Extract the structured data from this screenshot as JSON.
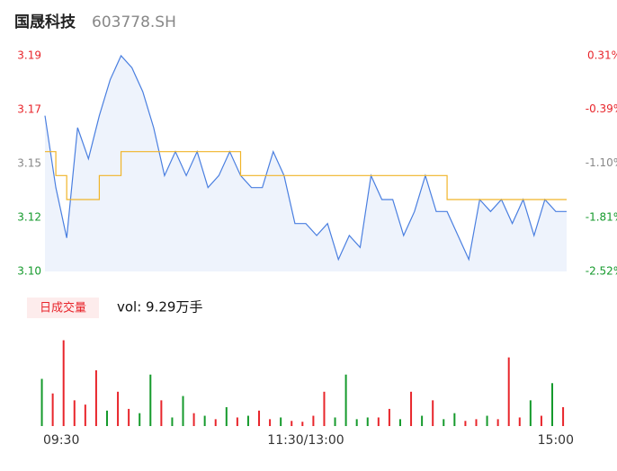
{
  "chart_data": [
    {
      "type": "line",
      "title": "国晟科技",
      "subtitle": "603778.SH",
      "xlim": [
        0,
        240
      ],
      "xticks": [
        {
          "value": 0,
          "label": "09:30"
        },
        {
          "value": 120,
          "label": "11:30/13:00"
        },
        {
          "value": 240,
          "label": "15:00"
        }
      ],
      "ylim": [
        3.1,
        3.19
      ],
      "yticks": [
        {
          "value": 3.19,
          "label": "3.19"
        },
        {
          "value": 3.1675,
          "label": "3.17"
        },
        {
          "value": 3.145,
          "label": "3.15"
        },
        {
          "value": 3.1225,
          "label": "3.12"
        },
        {
          "value": 3.1,
          "label": "3.10"
        }
      ],
      "ytick_colors": [
        "#e8252b",
        "#e8252b",
        "#888888",
        "#159a2c",
        "#159a2c"
      ],
      "y2lim": [
        -2.52,
        0.31
      ],
      "y2ticks": [
        {
          "value": 0.31,
          "label": "0.31%"
        },
        {
          "value": -0.39,
          "label": "-0.39%"
        },
        {
          "value": -1.1,
          "label": "-1.10%"
        },
        {
          "value": -1.81,
          "label": "-1.81%"
        },
        {
          "value": -2.52,
          "label": "-2.52%"
        }
      ],
      "x": [
        0,
        5,
        10,
        15,
        20,
        25,
        30,
        35,
        40,
        45,
        50,
        55,
        60,
        65,
        70,
        75,
        80,
        85,
        90,
        95,
        100,
        105,
        110,
        115,
        120,
        125,
        130,
        135,
        140,
        145,
        150,
        155,
        160,
        165,
        170,
        175,
        180,
        185,
        190,
        195,
        200,
        205,
        210,
        215,
        220,
        225,
        230,
        235,
        240
      ],
      "series": [
        {
          "color": "#4a7fe0",
          "area": "#eef3fc",
          "values": [
            3.165,
            3.135,
            3.114,
            3.16,
            3.147,
            3.165,
            3.18,
            3.19,
            3.185,
            3.175,
            3.16,
            3.14,
            3.15,
            3.14,
            3.15,
            3.135,
            3.14,
            3.15,
            3.14,
            3.135,
            3.135,
            3.15,
            3.14,
            3.12,
            3.12,
            3.115,
            3.12,
            3.105,
            3.115,
            3.11,
            3.14,
            3.13,
            3.13,
            3.115,
            3.125,
            3.14,
            3.125,
            3.125,
            3.115,
            3.105,
            3.13,
            3.125,
            3.13,
            3.12,
            3.13,
            3.115,
            3.13,
            3.125,
            3.125
          ]
        },
        {
          "color": "#f0b429",
          "step": true,
          "values": [
            3.15,
            3.14,
            3.13,
            3.13,
            3.13,
            3.14,
            3.14,
            3.15,
            3.15,
            3.15,
            3.15,
            3.15,
            3.15,
            3.15,
            3.15,
            3.15,
            3.15,
            3.15,
            3.14,
            3.14,
            3.14,
            3.14,
            3.14,
            3.14,
            3.14,
            3.14,
            3.14,
            3.14,
            3.14,
            3.14,
            3.14,
            3.14,
            3.14,
            3.14,
            3.14,
            3.14,
            3.14,
            3.13,
            3.13,
            3.13,
            3.13,
            3.13,
            3.13,
            3.13,
            3.13,
            3.13,
            3.13,
            3.13,
            3.13
          ]
        }
      ]
    },
    {
      "type": "bar",
      "legend_label": "日成交量",
      "summary": "vol: 9.29万手",
      "ylim": [
        0,
        110
      ],
      "values": [
        55,
        38,
        100,
        30,
        25,
        65,
        18,
        40,
        20,
        15,
        60,
        30,
        10,
        35,
        15,
        12,
        8,
        22,
        10,
        12,
        18,
        8,
        10,
        6,
        5,
        12,
        40,
        10,
        60,
        8,
        10,
        10,
        20,
        8,
        40,
        12,
        30,
        8,
        15,
        6,
        8,
        12,
        8,
        80,
        10,
        30,
        12,
        50,
        22
      ],
      "colors": [
        "#159a2c",
        "#e8252b",
        "#e8252b",
        "#e8252b",
        "#e8252b",
        "#e8252b",
        "#159a2c",
        "#e8252b",
        "#e8252b",
        "#159a2c",
        "#159a2c",
        "#e8252b",
        "#159a2c",
        "#159a2c",
        "#e8252b",
        "#159a2c",
        "#e8252b",
        "#159a2c",
        "#e8252b",
        "#159a2c",
        "#e8252b",
        "#e8252b",
        "#159a2c",
        "#e8252b",
        "#e8252b",
        "#e8252b",
        "#e8252b",
        "#159a2c",
        "#159a2c",
        "#159a2c",
        "#159a2c",
        "#e8252b",
        "#e8252b",
        "#159a2c",
        "#e8252b",
        "#159a2c",
        "#e8252b",
        "#159a2c",
        "#159a2c",
        "#e8252b",
        "#e8252b",
        "#159a2c",
        "#e8252b",
        "#e8252b",
        "#e8252b",
        "#159a2c",
        "#e8252b",
        "#159a2c",
        "#e8252b"
      ]
    }
  ]
}
